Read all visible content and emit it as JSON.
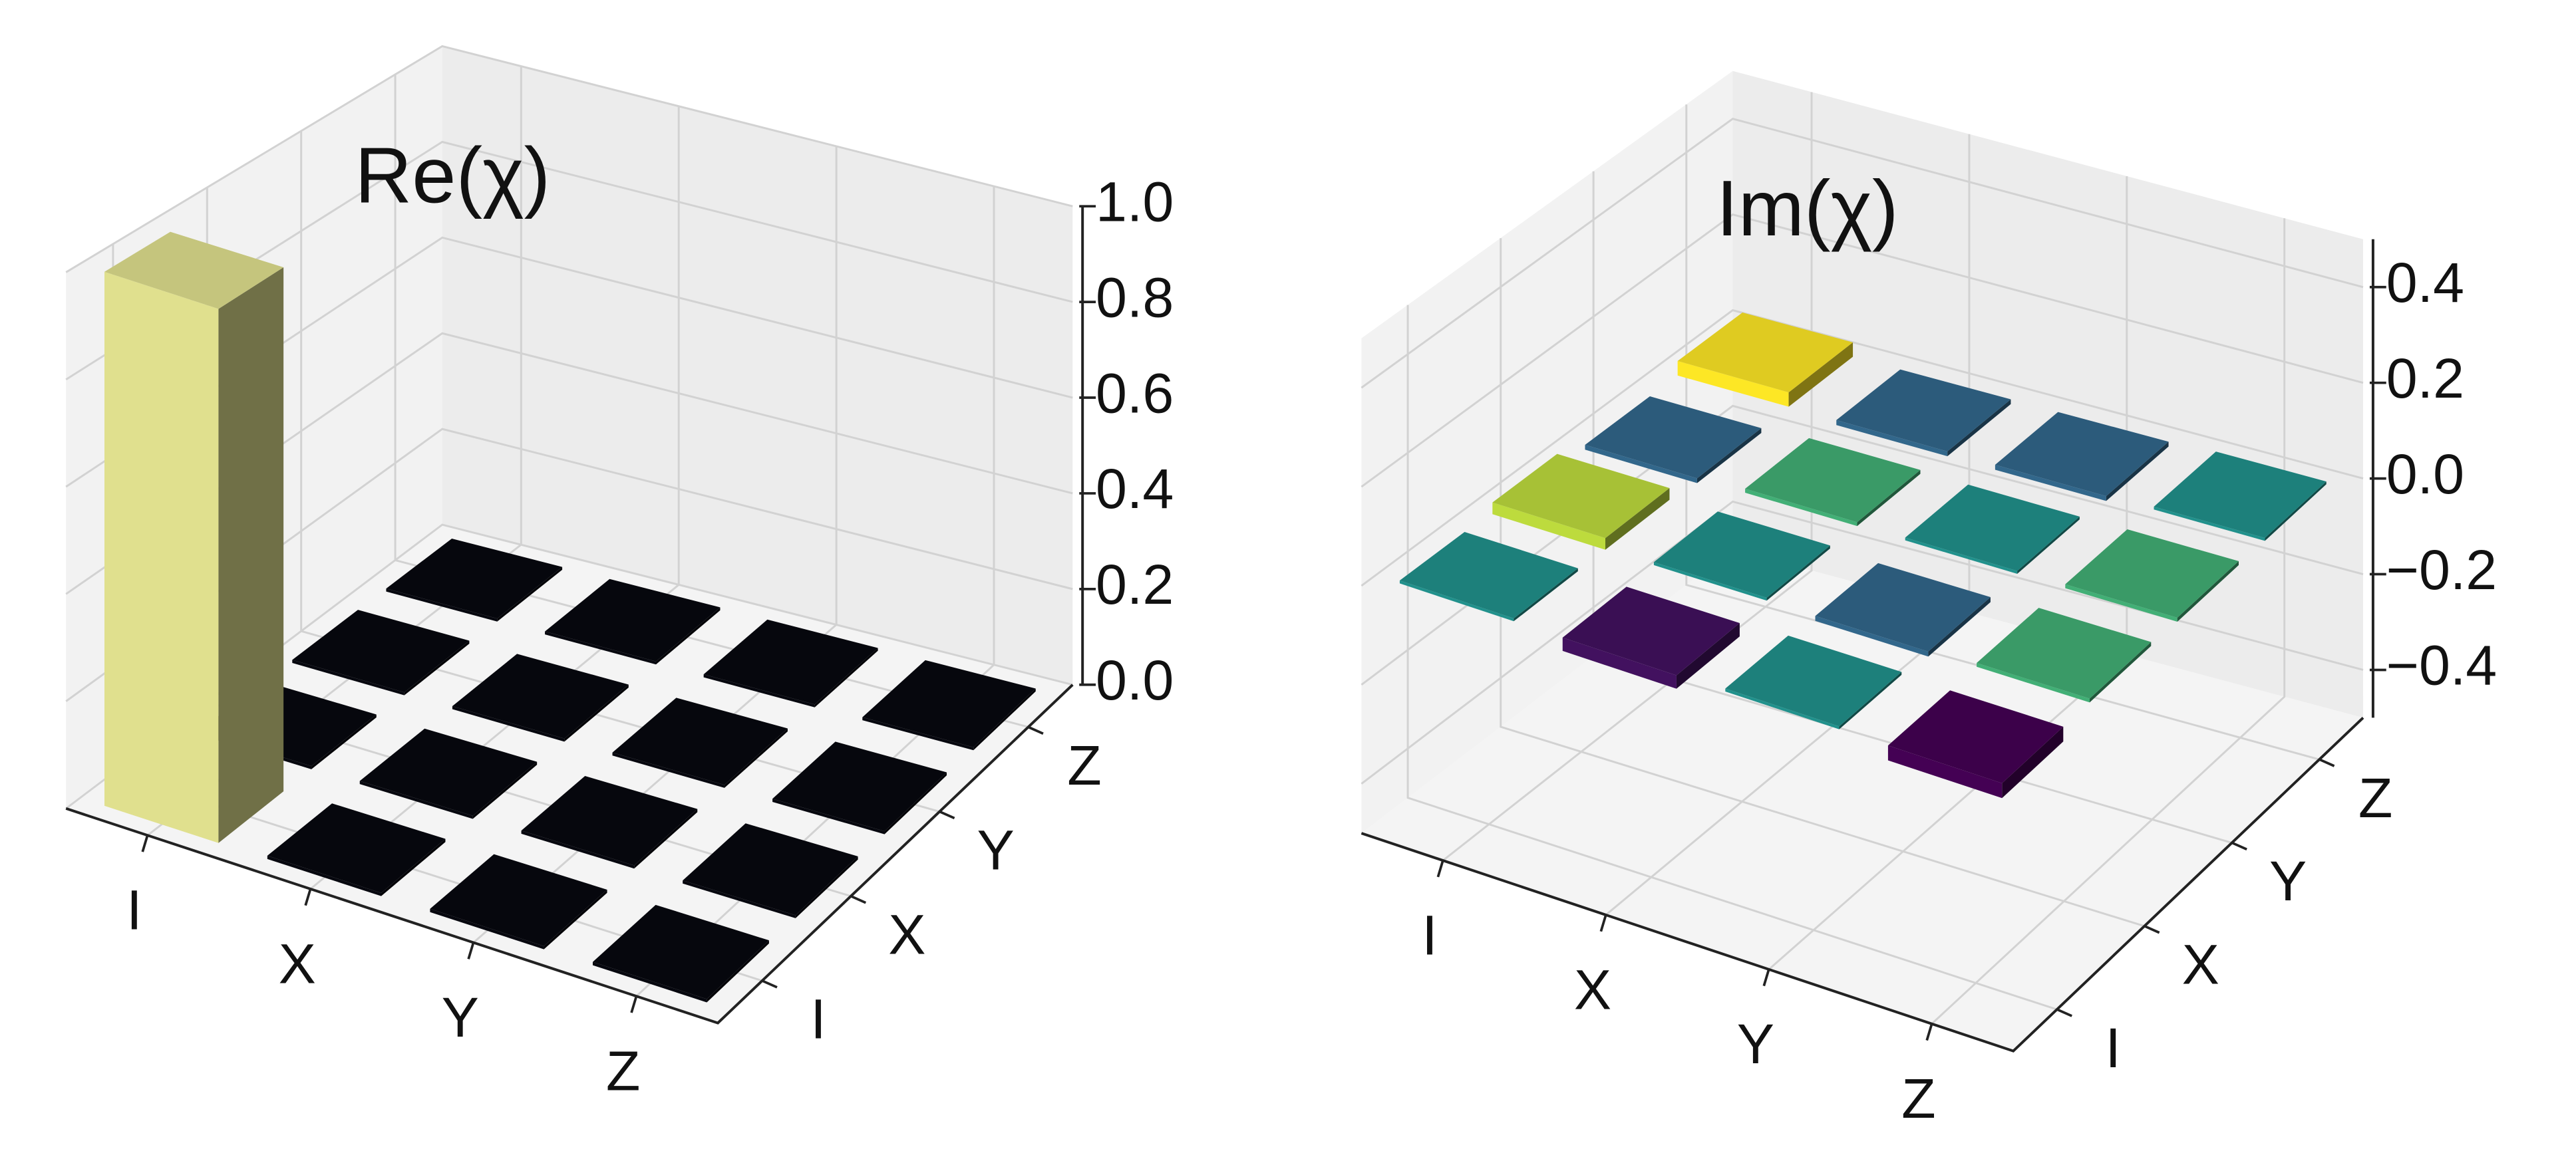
{
  "chart_data": [
    {
      "type": "bar3d",
      "title": "Re(χ)",
      "x_categories": [
        "I",
        "X",
        "Y",
        "Z"
      ],
      "y_categories": [
        "I",
        "X",
        "Y",
        "Z"
      ],
      "values": [
        [
          1.0,
          0,
          0,
          0
        ],
        [
          0,
          0,
          0,
          0
        ],
        [
          0,
          0,
          0,
          0
        ],
        [
          0,
          0,
          0,
          0
        ]
      ],
      "zlim": [
        0,
        1
      ],
      "zticks": [
        {
          "value": 0,
          "label": "0.0"
        },
        0.2,
        0.4,
        0.6,
        0.8,
        {
          "value": 1,
          "label": "1.0"
        }
      ],
      "cmap": [
        "#07080f",
        "#e0e08e"
      ]
    },
    {
      "type": "bar3d",
      "title": "Im(χ)",
      "x_categories": [
        "I",
        "X",
        "Y",
        "Z"
      ],
      "y_categories": [
        "I",
        "X",
        "Y",
        "Z"
      ],
      "values": [
        [
          0,
          -0.027,
          0,
          -0.03
        ],
        [
          0.024,
          0,
          -0.01,
          0.008
        ],
        [
          -0.01,
          0.008,
          0,
          0.008
        ],
        [
          0.03,
          -0.01,
          -0.01,
          0
        ]
      ],
      "zlim": [
        -0.5,
        0.5
      ],
      "zticks": [
        {
          "value": -0.4,
          "label": "−0.4"
        },
        {
          "value": -0.2,
          "label": "−0.2"
        },
        {
          "value": 0,
          "label": "0.0"
        },
        0.2,
        0.4
      ],
      "cmap": [
        "#440154",
        "#3b528b",
        "#21918c",
        "#5ec962",
        "#fde725"
      ]
    }
  ]
}
